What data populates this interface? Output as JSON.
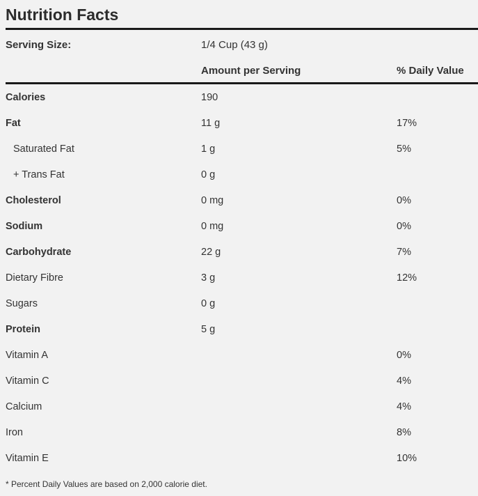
{
  "label": {
    "title": "Nutrition Facts",
    "serving_size_label": "Serving Size:",
    "serving_size_value": "1/4 Cup (43 g)",
    "header_amount": "Amount per Serving",
    "header_daily_value": "% Daily Value",
    "rows": [
      {
        "name": "Calories",
        "amount": "190",
        "dv": ""
      },
      {
        "name": "Fat",
        "amount": "11 g",
        "dv": "17%"
      },
      {
        "name": "Saturated Fat",
        "amount": "1 g",
        "dv": "5%"
      },
      {
        "name": "+ Trans Fat",
        "amount": "0 g",
        "dv": ""
      },
      {
        "name": "Cholesterol",
        "amount": "0 mg",
        "dv": "0%"
      },
      {
        "name": "Sodium",
        "amount": "0 mg",
        "dv": "0%"
      },
      {
        "name": "Carbohydrate",
        "amount": "22 g",
        "dv": "7%"
      },
      {
        "name": "Dietary Fibre",
        "amount": "3 g",
        "dv": "12%"
      },
      {
        "name": "Sugars",
        "amount": "0 g",
        "dv": ""
      },
      {
        "name": "Protein",
        "amount": "5 g",
        "dv": ""
      },
      {
        "name": "Vitamin A",
        "amount": "",
        "dv": "0%"
      },
      {
        "name": "Vitamin C",
        "amount": "",
        "dv": "4%"
      },
      {
        "name": "Calcium",
        "amount": "",
        "dv": "4%"
      },
      {
        "name": "Iron",
        "amount": "",
        "dv": "8%"
      },
      {
        "name": "Vitamin E",
        "amount": "",
        "dv": "10%"
      }
    ],
    "footnote": "* Percent Daily Values are based on 2,000 calorie diet."
  }
}
